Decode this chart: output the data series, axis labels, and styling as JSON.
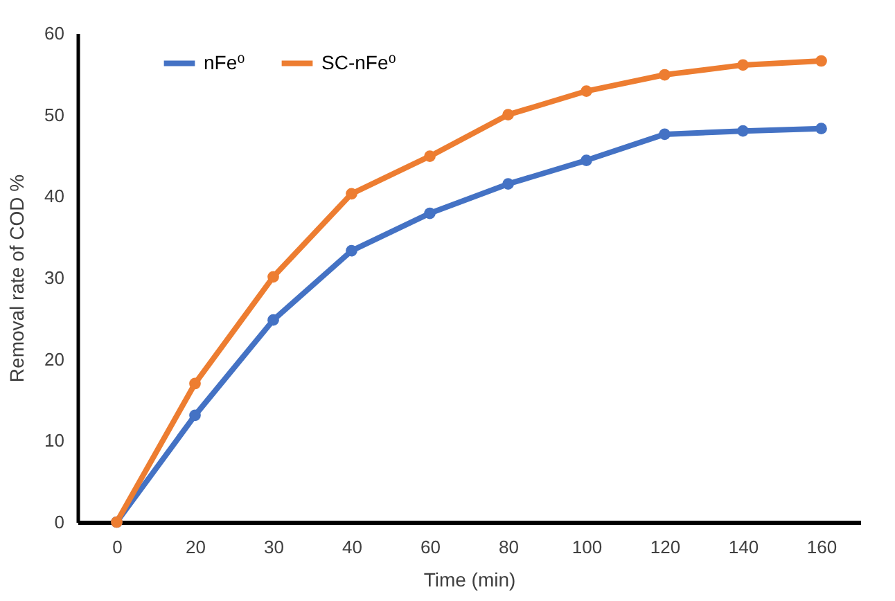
{
  "chart_data": {
    "type": "line",
    "xlabel": "Time (min)",
    "ylabel": "Removal rate of COD %",
    "categories": [
      "0",
      "20",
      "30",
      "40",
      "60",
      "80",
      "100",
      "120",
      "140",
      "160"
    ],
    "series": [
      {
        "name": "nFe⁰",
        "color": "#4472c4",
        "values": [
          0,
          13.1,
          24.8,
          33.3,
          37.9,
          41.5,
          44.4,
          47.6,
          48,
          48.3
        ]
      },
      {
        "name": "SC-nFe⁰",
        "color": "#ed7d31",
        "values": [
          0,
          17,
          30.1,
          40.3,
          44.9,
          50,
          52.9,
          54.9,
          56.1,
          56.6
        ]
      }
    ],
    "ylim": [
      0,
      60
    ],
    "yticks": [
      0,
      10,
      20,
      30,
      40,
      50,
      60
    ],
    "grid": false,
    "legend": "top left",
    "marker": "circle",
    "line_style": "solid"
  }
}
